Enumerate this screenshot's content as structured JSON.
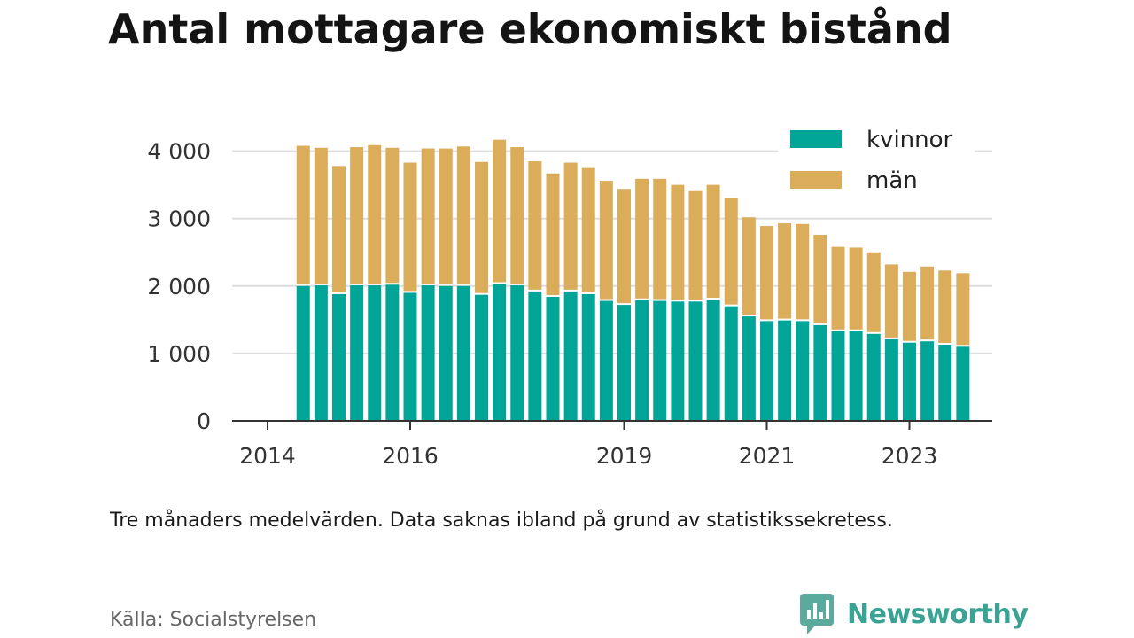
{
  "title": "Antal mottagare ekonomiskt bistånd",
  "note": "Tre månaders medelvärden. Data saknas ibland på grund av statistikssekretess.",
  "source": "Källa: Socialstyrelsen",
  "brand": {
    "name": "Newsworthy",
    "logo_icon": "newsworthy-logo-icon",
    "color": "#3aa393"
  },
  "colors": {
    "kvinnor": "#00a598",
    "man": "#dbad5b",
    "grid": "#dddddd",
    "axis": "#333333"
  },
  "chart_data": {
    "type": "bar",
    "stacked": true,
    "title": "Antal mottagare ekonomiskt bistånd",
    "xlabel": "",
    "ylabel": "",
    "ylim": [
      0,
      4500
    ],
    "yticks": [
      {
        "value": 0,
        "label": "0"
      },
      {
        "value": 1000,
        "label": "1 000"
      },
      {
        "value": 2000,
        "label": "2 000"
      },
      {
        "value": 3000,
        "label": "3 000"
      },
      {
        "value": 4000,
        "label": "4 000"
      }
    ],
    "xlim": [
      2014.0,
      2024.0
    ],
    "xticks": [
      {
        "value": 2014.0,
        "label": "2014"
      },
      {
        "value": 2016.0,
        "label": "2016"
      },
      {
        "value": 2019.0,
        "label": "2019"
      },
      {
        "value": 2021.0,
        "label": "2021"
      },
      {
        "value": 2023.0,
        "label": "2023"
      }
    ],
    "x": [
      2014.5,
      2014.75,
      2015.0,
      2015.25,
      2015.5,
      2015.75,
      2016.0,
      2016.25,
      2016.5,
      2016.75,
      2017.0,
      2017.25,
      2017.5,
      2017.75,
      2018.0,
      2018.25,
      2018.5,
      2018.75,
      2019.0,
      2019.25,
      2019.5,
      2019.75,
      2020.0,
      2020.25,
      2020.5,
      2020.75,
      2021.0,
      2021.25,
      2021.5,
      2021.75,
      2022.0,
      2022.25,
      2022.5,
      2022.75,
      2023.0,
      2023.25,
      2023.5,
      2023.75
    ],
    "series": [
      {
        "name": "kvinnor",
        "values": [
          2000,
          2010,
          1880,
          2010,
          2010,
          2020,
          1900,
          2010,
          2000,
          2000,
          1870,
          2030,
          2010,
          1920,
          1840,
          1920,
          1880,
          1780,
          1720,
          1790,
          1780,
          1770,
          1770,
          1800,
          1700,
          1550,
          1480,
          1490,
          1480,
          1420,
          1330,
          1330,
          1290,
          1210,
          1160,
          1180,
          1130,
          1100
        ]
      },
      {
        "name": "män",
        "values": [
          2080,
          2040,
          1900,
          2050,
          2080,
          2030,
          1930,
          2030,
          2040,
          2070,
          1970,
          2140,
          2050,
          1930,
          1830,
          1910,
          1870,
          1780,
          1720,
          1800,
          1810,
          1730,
          1650,
          1700,
          1600,
          1470,
          1410,
          1440,
          1440,
          1340,
          1250,
          1240,
          1210,
          1110,
          1050,
          1110,
          1100,
          1090
        ]
      }
    ],
    "legend": {
      "position": "top-right",
      "entries": [
        "kvinnor",
        "män"
      ]
    },
    "grid": "y"
  }
}
